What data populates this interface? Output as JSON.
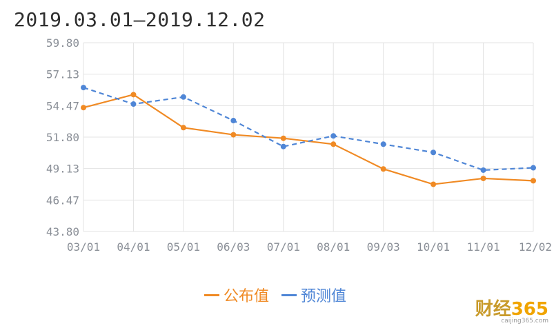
{
  "title": "2019.03.01—2019.12.02",
  "chart_data": {
    "type": "line",
    "categories": [
      "03/01",
      "04/01",
      "05/01",
      "06/03",
      "07/01",
      "08/01",
      "09/03",
      "10/01",
      "11/01",
      "12/02"
    ],
    "y_ticks": [
      "59.80",
      "57.13",
      "54.47",
      "51.80",
      "49.13",
      "46.47",
      "43.80"
    ],
    "ylim": [
      43.8,
      59.8
    ],
    "grid": true,
    "legend_placement": "bottom",
    "series": [
      {
        "name": "公布值",
        "color": "#f08a24",
        "style": "solid",
        "values": [
          54.3,
          55.4,
          52.6,
          52.0,
          51.7,
          51.2,
          49.1,
          47.8,
          48.3,
          48.1
        ]
      },
      {
        "name": "预测值",
        "color": "#4f86d6",
        "style": "dashed",
        "values": [
          56.0,
          54.6,
          55.2,
          53.2,
          51.0,
          51.9,
          51.2,
          50.5,
          49.0,
          49.2
        ]
      }
    ]
  },
  "watermark": {
    "logo_text": "财经",
    "logo_num": "365",
    "url": "caijing365.com"
  }
}
